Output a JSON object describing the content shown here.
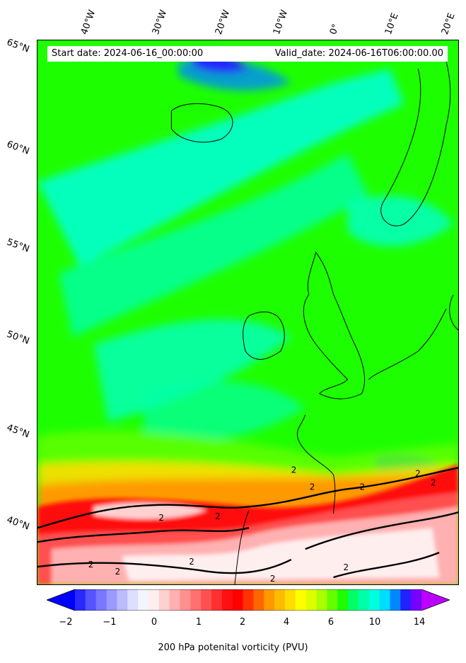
{
  "header": {
    "start_date": "Start date: 2024-06-16_00:00:00",
    "valid_date": "Valid_date: 2024-06-16T06:00:00.00"
  },
  "map": {
    "longitude_labels": [
      "40°W",
      "30°W",
      "20°W",
      "10°W",
      "0°",
      "10°E",
      "20°E"
    ],
    "latitude_labels": [
      "65°N",
      "60°N",
      "55°N",
      "50°N",
      "45°N",
      "40°N"
    ],
    "contour_labels": [
      "2",
      "2",
      "2",
      "2",
      "2",
      "2",
      "2",
      "2",
      "2",
      "2",
      "2",
      "2"
    ],
    "contour_level": 2,
    "colors": {
      "low_pv": "#1dff00",
      "mid_pv": "#00ffdd",
      "high_pv": "#ff0000",
      "very_high_pv": "#ffffff",
      "negative_pv": "#0000ff",
      "coastline": "#000000"
    }
  },
  "colorbar": {
    "title": "200 hPa potenital vorticity (PVU)",
    "tick_labels": [
      "−2",
      "−1",
      "0",
      "1",
      "2",
      "4",
      "6",
      "10",
      "14"
    ],
    "levels": [
      -2,
      -1.75,
      -1.5,
      -1.25,
      -1,
      -0.75,
      -0.5,
      -0.25,
      0,
      0.25,
      0.5,
      0.75,
      1,
      1.25,
      1.5,
      1.75,
      2,
      2.5,
      3,
      3.5,
      4,
      4.5,
      5,
      5.5,
      6,
      7,
      8,
      9,
      10,
      11,
      12,
      13,
      14,
      15
    ],
    "colors": [
      "#0000ff",
      "#2a2aff",
      "#5555ff",
      "#7777ff",
      "#9999ff",
      "#bbbbff",
      "#ddddff",
      "#f4f4ff",
      "#ffeeee",
      "#ffd0d0",
      "#ffb0b0",
      "#ff9090",
      "#ff7070",
      "#ff5050",
      "#ff3030",
      "#ff1010",
      "#ff0000",
      "#ff3300",
      "#ff6600",
      "#ff9900",
      "#ffbb00",
      "#ffdd00",
      "#ffff00",
      "#ddff00",
      "#aaff00",
      "#66ff00",
      "#1dff00",
      "#00ff66",
      "#00ffaa",
      "#00ffdd",
      "#00ddff",
      "#0088ff",
      "#2222ff",
      "#7700ff",
      "#bb00ff"
    ]
  }
}
